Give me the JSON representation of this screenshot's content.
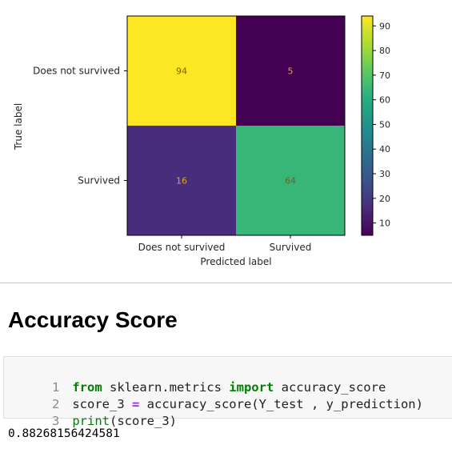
{
  "chart_data": {
    "type": "heatmap",
    "x_categories": [
      "Does not survived",
      "Survived"
    ],
    "y_categories": [
      "Does not survived",
      "Survived"
    ],
    "matrix": [
      [
        94,
        5
      ],
      [
        16,
        64
      ]
    ],
    "xlabel": "Predicted label",
    "ylabel": "True label",
    "colormap": "viridis",
    "vmin": 5,
    "vmax": 94,
    "colorbar_ticks": [
      10,
      20,
      30,
      40,
      50,
      60,
      70,
      80,
      90
    ],
    "legend_placement": "right"
  },
  "section_title": "Accuracy Score",
  "code_cell": {
    "lines": [
      {
        "num": "1",
        "tokens": [
          {
            "t": "from",
            "c": "kw"
          },
          {
            "t": " sklearn.metrics ",
            "c": ""
          },
          {
            "t": "import",
            "c": "kw"
          },
          {
            "t": " accuracy_score",
            "c": ""
          }
        ]
      },
      {
        "num": "2",
        "tokens": [
          {
            "t": "score_3 ",
            "c": ""
          },
          {
            "t": "=",
            "c": "op"
          },
          {
            "t": " accuracy_score(Y_test , y_prediction)",
            "c": ""
          }
        ]
      },
      {
        "num": "3",
        "tokens": [
          {
            "t": "print",
            "c": "fn"
          },
          {
            "t": "(score_3)",
            "c": ""
          }
        ]
      }
    ]
  },
  "output_text": "0.88268156424581"
}
